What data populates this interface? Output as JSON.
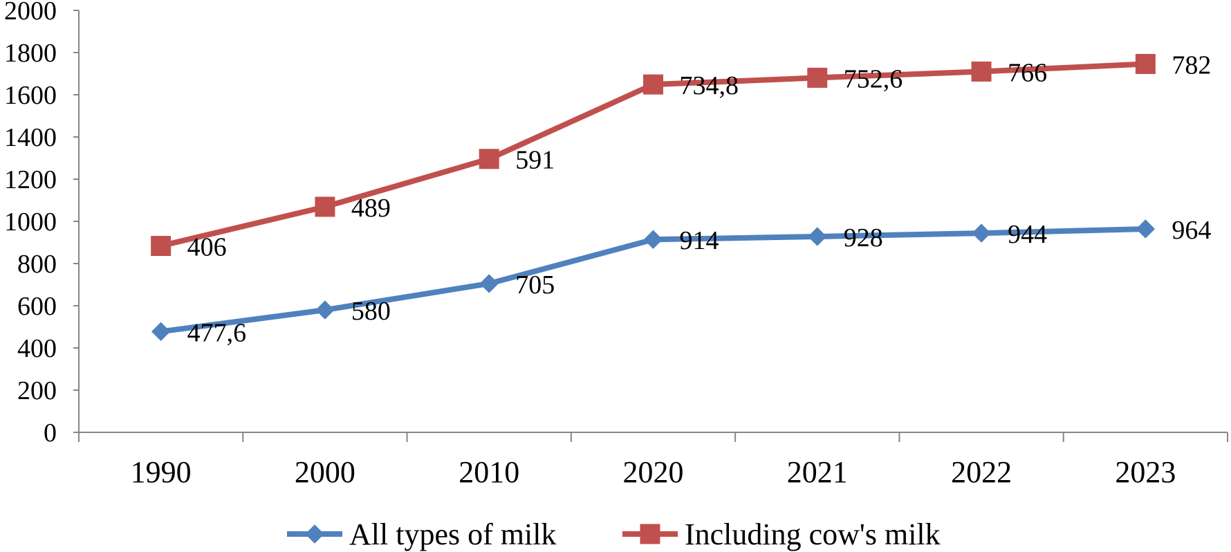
{
  "chart_data": {
    "type": "line",
    "categories": [
      "1990",
      "2000",
      "2010",
      "2020",
      "2021",
      "2022",
      "2023"
    ],
    "ylim": [
      0,
      2000
    ],
    "yticks": [
      0,
      200,
      400,
      600,
      800,
      1000,
      1200,
      1400,
      1600,
      1800,
      2000
    ],
    "ytick_labels": [
      "0",
      "200",
      "400",
      "600",
      "800",
      "1000",
      "1200",
      "1400",
      "1600",
      "1800",
      "2000"
    ],
    "grid": false,
    "legend_position": "bottom",
    "title": "",
    "xlabel": "",
    "ylabel": "",
    "series": [
      {
        "name": "All types of milk",
        "marker": "diamond",
        "color": "#4f81bd",
        "values": [
          477.6,
          580,
          705,
          914,
          928,
          944,
          964
        ],
        "labels": [
          "477,6",
          "580",
          "705",
          "914",
          "928",
          "944",
          "964"
        ]
      },
      {
        "name": "Including cow's milk",
        "marker": "square",
        "color": "#c0504d",
        "values": [
          883.6,
          1069,
          1296,
          1648.8,
          1680.6,
          1710,
          1746
        ],
        "labels": [
          "406",
          "489",
          "591",
          "734,8",
          "752,6",
          "766",
          "782"
        ]
      }
    ]
  }
}
